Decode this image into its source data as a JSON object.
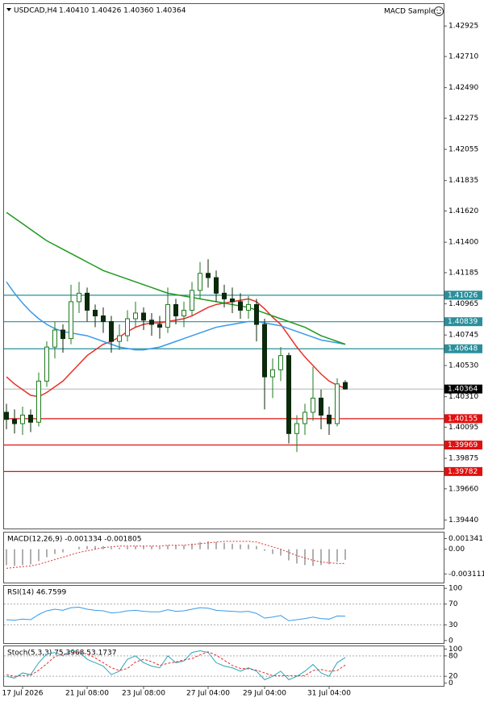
{
  "indicator_name": "MACD Sample",
  "chart_data": [
    {
      "type": "candlestick",
      "title": "USDCAD,H4",
      "subtitle": "1.40410 1.40426 1.40360 1.40364",
      "categories": [
        null,
        null,
        "17 Jul 2026",
        null,
        null,
        null,
        null,
        null,
        null,
        null,
        "21 Jul 08:00",
        null,
        null,
        null,
        null,
        null,
        null,
        "23 Jul 08:00",
        null,
        null,
        null,
        null,
        null,
        null,
        null,
        "27 Jul 04:00",
        null,
        null,
        null,
        null,
        null,
        null,
        "29 Jul 04:00",
        null,
        null,
        null,
        null,
        null,
        null,
        null,
        "31 Jul 04:00",
        null,
        null
      ],
      "open": [
        1.402,
        1.4015,
        1.4012,
        1.4018,
        1.4013,
        1.4042,
        1.4066,
        1.4078,
        1.4072,
        1.4098,
        1.4104,
        1.4092,
        1.4088,
        1.4084,
        1.407,
        1.4074,
        1.4086,
        1.409,
        1.4085,
        1.4082,
        1.408,
        1.4096,
        1.4088,
        1.4092,
        1.4106,
        1.4118,
        1.4115,
        1.4104,
        1.41,
        1.4098,
        1.4092,
        1.4096,
        1.4082,
        1.4045,
        1.405,
        1.406,
        1.4005,
        1.4012,
        1.402,
        1.403,
        1.4018,
        1.4012,
        1.4041
      ],
      "high": [
        1.4026,
        1.4022,
        1.4024,
        1.4022,
        1.4048,
        1.407,
        1.4084,
        1.4082,
        1.411,
        1.4112,
        1.4108,
        1.4096,
        1.4094,
        1.4088,
        1.4082,
        1.4092,
        1.4098,
        1.4094,
        1.409,
        1.4088,
        1.4108,
        1.41,
        1.4098,
        1.4112,
        1.4126,
        1.4128,
        1.412,
        1.411,
        1.4108,
        1.4104,
        1.4102,
        1.41,
        1.4086,
        1.4058,
        1.4066,
        1.4062,
        1.4018,
        1.4026,
        1.4052,
        1.4036,
        1.4024,
        1.4044,
        1.40426
      ],
      "low": [
        1.4008,
        1.4005,
        1.4004,
        1.4006,
        1.401,
        1.4038,
        1.4058,
        1.4062,
        1.4068,
        1.409,
        1.4084,
        1.408,
        1.4076,
        1.4062,
        1.4064,
        1.407,
        1.408,
        1.4078,
        1.4074,
        1.4072,
        1.4076,
        1.4082,
        1.408,
        1.4088,
        1.41,
        1.4108,
        1.4098,
        1.4094,
        1.409,
        1.4086,
        1.4086,
        1.407,
        1.4022,
        1.403,
        1.4042,
        1.3998,
        1.3992,
        1.4004,
        1.4014,
        1.4008,
        1.4004,
        1.401,
        1.4036
      ],
      "close": [
        1.4015,
        1.4012,
        1.4018,
        1.4013,
        1.4042,
        1.4066,
        1.4078,
        1.4072,
        1.4098,
        1.4104,
        1.4092,
        1.4088,
        1.4084,
        1.407,
        1.4074,
        1.4086,
        1.409,
        1.4085,
        1.4082,
        1.408,
        1.4096,
        1.4088,
        1.4092,
        1.4106,
        1.4118,
        1.4115,
        1.4104,
        1.41,
        1.4098,
        1.4092,
        1.4096,
        1.4082,
        1.4045,
        1.405,
        1.406,
        1.4005,
        1.4012,
        1.402,
        1.403,
        1.4018,
        1.4012,
        1.404,
        1.40364
      ],
      "up_color": "#1f7a1f",
      "down_color": "#0a2a0a",
      "lines": [
        {
          "color": "#e8302a",
          "values": [
            1.4045,
            1.404,
            1.4036,
            1.4032,
            1.4031,
            1.4034,
            1.4038,
            1.4042,
            1.4048,
            1.4054,
            1.406,
            1.4064,
            1.4068,
            1.407,
            1.4073,
            1.4077,
            1.408,
            1.4082,
            1.4083,
            1.4083,
            1.4084,
            1.4085,
            1.4086,
            1.4088,
            1.4091,
            1.4094,
            1.4096,
            1.4097,
            1.4098,
            1.4099,
            1.41,
            1.4098,
            1.4093,
            1.4087,
            1.4082,
            1.4074,
            1.4066,
            1.4059,
            1.4053,
            1.4047,
            1.4042,
            1.4039,
            1.4037
          ]
        },
        {
          "color": "#3a9ae8",
          "values": [
            1.4112,
            1.4104,
            1.4097,
            1.4091,
            1.4086,
            1.4082,
            1.4079,
            1.4077,
            1.4076,
            1.4075,
            1.4074,
            1.4072,
            1.407,
            1.4068,
            1.4066,
            1.4065,
            1.4064,
            1.4064,
            1.4065,
            1.4066,
            1.4068,
            1.407,
            1.4072,
            1.4074,
            1.4076,
            1.4078,
            1.408,
            1.4081,
            1.4082,
            1.4083,
            1.4084,
            1.4084,
            1.4083,
            1.4082,
            1.4081,
            1.4079,
            1.4077,
            1.4075,
            1.4073,
            1.4071,
            1.407,
            1.4069,
            1.4068
          ]
        },
        {
          "color": "#1f9a1f",
          "values": [
            1.4161,
            1.4157,
            1.4153,
            1.4149,
            1.4145,
            1.4141,
            1.4138,
            1.4135,
            1.4132,
            1.4129,
            1.4126,
            1.4123,
            1.412,
            1.4118,
            1.4116,
            1.4114,
            1.4112,
            1.411,
            1.4108,
            1.4106,
            1.4104,
            1.4103,
            1.4102,
            1.4101,
            1.41,
            1.4099,
            1.4098,
            1.4097,
            1.4096,
            1.4095,
            1.4094,
            1.4092,
            1.409,
            1.4088,
            1.4086,
            1.4084,
            1.4082,
            1.408,
            1.4077,
            1.4074,
            1.4072,
            1.407,
            1.4068
          ]
        }
      ],
      "levels": [
        {
          "value": 1.41026,
          "color": "#2a8f9b"
        },
        {
          "value": 1.40839,
          "color": "#2a8f9b"
        },
        {
          "value": 1.40648,
          "color": "#2a8f9b"
        },
        {
          "value": 1.40364,
          "color": "#000000"
        },
        {
          "value": 1.40155,
          "color": "#e01010"
        },
        {
          "value": 1.39969,
          "color": "#e01010"
        },
        {
          "value": 1.39782,
          "color": "#e01010"
        }
      ],
      "ylim": [
        1.3938,
        1.4308
      ],
      "yticks": [
        1.42925,
        {
          "value": 1.4271,
          "label": "1.42710"
        },
        {
          "value": 1.4249,
          "label": "1.42490"
        },
        1.42275,
        1.42055,
        1.41835,
        {
          "value": 1.4162,
          "label": "1.41620"
        },
        {
          "value": 1.414,
          "label": "1.41400"
        },
        1.41185,
        1.40965,
        1.40745,
        {
          "value": 1.4053,
          "label": "1.40530"
        },
        {
          "value": 1.4031,
          "label": "1.40310"
        },
        1.40095,
        1.39875,
        {
          "value": 1.3966,
          "label": "1.39660"
        },
        {
          "value": 1.3944,
          "label": "1.39440"
        }
      ]
    },
    {
      "type": "macd",
      "title": "MACD(12,26,9) -0.001334 -0.001805",
      "histogram": {
        "color": "#b0b0b0",
        "values": [
          -0.002,
          -0.0021,
          -0.002,
          -0.0019,
          -0.0015,
          -0.001,
          -0.0006,
          -0.0004,
          0.0,
          0.0003,
          0.0004,
          0.0004,
          0.0004,
          0.0002,
          0.0002,
          0.0003,
          0.0004,
          0.0004,
          0.0004,
          0.0003,
          0.0005,
          0.0005,
          0.0005,
          0.0007,
          0.0009,
          0.001,
          0.0009,
          0.0008,
          0.0007,
          0.0006,
          0.0006,
          0.0004,
          -0.0002,
          -0.0006,
          -0.0008,
          -0.0014,
          -0.0018,
          -0.002,
          -0.0021,
          -0.002,
          -0.0019,
          -0.0016,
          -0.001334
        ]
      },
      "signal": {
        "color": "#e03030",
        "values": [
          -0.0024,
          -0.0023,
          -0.0022,
          -0.0021,
          -0.0019,
          -0.0016,
          -0.0013,
          -0.001,
          -0.0007,
          -0.0004,
          -0.0002,
          0.0,
          0.0002,
          0.0003,
          0.0004,
          0.0004,
          0.0004,
          0.0004,
          0.0004,
          0.0004,
          0.0005,
          0.0005,
          0.0005,
          0.0006,
          0.0007,
          0.0008,
          0.0009,
          0.001,
          0.001,
          0.001,
          0.001,
          0.0009,
          0.0006,
          0.0003,
          0.0,
          -0.0004,
          -0.0008,
          -0.0011,
          -0.0014,
          -0.0016,
          -0.0017,
          -0.0018,
          -0.001805
        ]
      },
      "ylim": [
        -0.0042,
        0.0021
      ],
      "yticks": [
        0.001341,
        {
          "value": 0,
          "label": "0.00"
        },
        -0.003111
      ]
    },
    {
      "type": "line",
      "title": "RSI(14) 46.7599",
      "grid": true,
      "series": [
        {
          "color": "#3a9ae8",
          "dashed": false,
          "values": [
            40,
            39,
            41,
            40,
            50,
            57,
            60,
            58,
            63,
            64,
            60,
            58,
            57,
            53,
            54,
            57,
            58,
            56,
            55,
            55,
            59,
            56,
            57,
            60,
            63,
            62,
            58,
            57,
            56,
            55,
            56,
            52,
            43,
            45,
            48,
            38,
            40,
            42,
            45,
            42,
            41,
            47,
            46.7599
          ]
        }
      ],
      "ylim": [
        -5,
        105
      ],
      "yticks": [
        100,
        70,
        30,
        0
      ]
    },
    {
      "type": "line",
      "title": "Stoch(5,3,3) 75.3968 53.1737",
      "grid": true,
      "series": [
        {
          "color": "#2aa8b8",
          "dashed": false,
          "values": [
            20,
            15,
            30,
            25,
            60,
            85,
            90,
            80,
            95,
            92,
            70,
            60,
            50,
            25,
            35,
            70,
            80,
            60,
            50,
            45,
            80,
            60,
            65,
            90,
            95,
            90,
            60,
            50,
            45,
            35,
            45,
            35,
            10,
            20,
            35,
            10,
            20,
            35,
            55,
            30,
            20,
            60,
            75.3968
          ]
        },
        {
          "color": "#e03030",
          "dashed": true,
          "values": [
            25,
            20,
            22,
            23,
            38,
            57,
            78,
            85,
            88,
            89,
            86,
            74,
            60,
            45,
            37,
            43,
            62,
            70,
            63,
            52,
            58,
            62,
            68,
            72,
            83,
            92,
            82,
            67,
            52,
            43,
            42,
            38,
            30,
            22,
            22,
            22,
            22,
            22,
            37,
            40,
            35,
            37,
            53.1737
          ]
        }
      ],
      "ylim": [
        -8,
        108
      ],
      "yticks": [
        100,
        80,
        20,
        0
      ]
    }
  ]
}
